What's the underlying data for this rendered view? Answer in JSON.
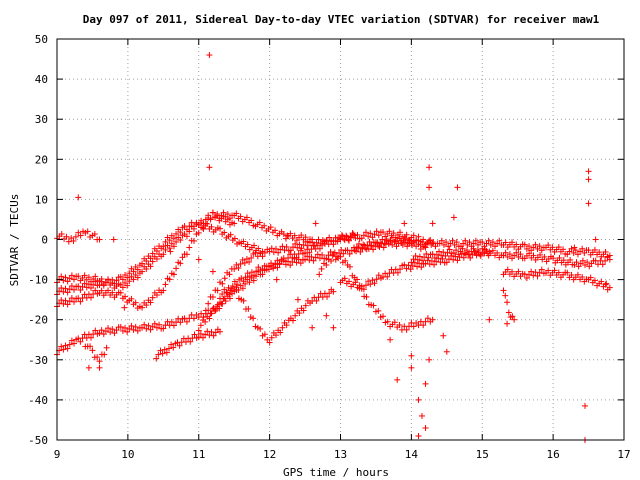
{
  "chart_data": {
    "type": "scatter",
    "title": "Day 097 of 2011, Sidereal Day-to-day VTEC variation (SDTVAR) for receiver maw1",
    "xlabel": "GPS time / hours",
    "ylabel": "SDTVAR / TECUs",
    "xlim": [
      9,
      17
    ],
    "ylim": [
      -50,
      50
    ],
    "xticks": [
      "9",
      "10",
      "11",
      "12",
      "13",
      "14",
      "15",
      "16",
      "17"
    ],
    "yticks": [
      "-50",
      "-40",
      "-30",
      "-20",
      "-10",
      "0",
      "10",
      "20",
      "30",
      "40",
      "50"
    ],
    "grid": true,
    "marker": "+",
    "color": "#ff0000",
    "tracks": [
      {
        "x": [
          9.0,
          9.3,
          9.6,
          9.9,
          10.2,
          10.5,
          10.8,
          11.0,
          11.2,
          11.5,
          11.9,
          12.2,
          12.5,
          12.8,
          13.0,
          13.3,
          13.6,
          13.9,
          14.1,
          14.3
        ],
        "y": [
          -28,
          -25,
          -23,
          -22.5,
          -22,
          -21.5,
          -20,
          -19,
          -18,
          -13,
          -8,
          -5,
          -3,
          -1,
          0,
          1,
          1.5,
          1,
          0,
          -1
        ]
      },
      {
        "x": [
          9.0,
          9.3,
          9.6,
          9.9,
          10.2,
          10.5,
          10.8,
          11.0,
          11.3,
          11.6,
          11.9
        ],
        "y": [
          -13,
          -12,
          -11,
          -10,
          -6,
          -1,
          3,
          4,
          2,
          -1,
          -3
        ]
      },
      {
        "x": [
          9.0,
          9.3,
          9.6,
          9.9,
          10.2,
          10.5,
          10.8,
          11.0,
          11.2,
          11.5
        ],
        "y": [
          -10,
          -9.5,
          -10,
          -12,
          -8,
          -3,
          1,
          4,
          6,
          4
        ]
      },
      {
        "x": [
          9.0,
          9.3,
          9.6,
          9.9,
          10.2,
          10.5,
          10.8,
          11.0,
          11.2,
          11.5,
          11.8,
          12.2,
          12.6
        ],
        "y": [
          -16,
          -15,
          -13,
          -14,
          -17,
          -12,
          -4,
          2,
          6,
          6,
          4,
          1,
          0
        ]
      },
      {
        "x": [
          9.0,
          9.2,
          9.4,
          9.6
        ],
        "y": [
          1,
          0,
          2,
          0
        ]
      },
      {
        "x": [
          9.4,
          9.5,
          9.6,
          9.7
        ],
        "y": [
          -26,
          -28,
          -30,
          -27
        ]
      },
      {
        "x": [
          10.4,
          10.7,
          11.0,
          11.3
        ],
        "y": [
          -29,
          -26,
          -24,
          -23
        ]
      },
      {
        "x": [
          11.0,
          11.3,
          11.5,
          11.7,
          11.9,
          12.0,
          12.3,
          12.6,
          12.9
        ],
        "y": [
          -22,
          -16,
          -12,
          -18,
          -24,
          -25,
          -20,
          -15,
          -13
        ]
      },
      {
        "x": [
          11.1,
          11.3,
          11.5,
          11.8,
          12.0,
          12.3,
          12.6,
          12.9,
          13.2
        ],
        "y": [
          -17,
          -11,
          -7,
          -4,
          -3,
          -2,
          -1,
          0,
          1
        ]
      },
      {
        "x": [
          11.3,
          11.6,
          11.9,
          12.2,
          12.5,
          12.8,
          13.1,
          13.4,
          13.7,
          14.0,
          14.2
        ],
        "y": [
          -14,
          -10,
          -7,
          -6,
          -5,
          -4,
          -3,
          -2,
          -1,
          -1,
          -2
        ]
      },
      {
        "x": [
          12.7,
          12.9,
          13.1,
          13.3,
          13.5,
          13.7,
          13.9,
          14.1,
          14.3
        ],
        "y": [
          -8,
          -4,
          -6,
          -13,
          -18,
          -21,
          -22,
          -21,
          -20
        ]
      },
      {
        "x": [
          13.0,
          13.3,
          13.6,
          13.9,
          14.2,
          14.5,
          14.8,
          15.1
        ],
        "y": [
          -10,
          -12,
          -9,
          -7,
          -6,
          -5,
          -4,
          -3
        ]
      },
      {
        "x": [
          13.2,
          13.5,
          13.8,
          14.1,
          14.4,
          14.7,
          15.0,
          15.3,
          15.6,
          15.9,
          16.2,
          16.5,
          16.8
        ],
        "y": [
          -2,
          -1,
          0,
          -1,
          -1,
          -1,
          -1,
          -1,
          -2,
          -2,
          -3,
          -3,
          -4
        ]
      },
      {
        "x": [
          14.0,
          14.3,
          14.6,
          15.0,
          15.3,
          15.6,
          16.0,
          16.3,
          16.6,
          16.8
        ],
        "y": [
          -5,
          -4,
          -3,
          -3,
          -4,
          -4,
          -5,
          -6,
          -6,
          -5
        ]
      },
      {
        "x": [
          15.3,
          15.6,
          15.9,
          16.2,
          16.5,
          16.8
        ],
        "y": [
          -8,
          -9,
          -8,
          -9,
          -10,
          -12
        ]
      },
      {
        "x": [
          15.3,
          15.35,
          15.4,
          15.45
        ],
        "y": [
          -12,
          -16,
          -19,
          -20
        ]
      }
    ],
    "points": [
      [
        11.15,
        46
      ],
      [
        11.15,
        18
      ],
      [
        9.3,
        10.5
      ],
      [
        14.25,
        18
      ],
      [
        14.25,
        13
      ],
      [
        14.65,
        13
      ],
      [
        14.6,
        5.5
      ],
      [
        16.5,
        17
      ],
      [
        16.5,
        15
      ],
      [
        16.5,
        9
      ],
      [
        16.45,
        -41.5
      ],
      [
        16.45,
        -50
      ],
      [
        14.1,
        -40
      ],
      [
        14.15,
        -44
      ],
      [
        14.2,
        -47
      ],
      [
        14.1,
        -49
      ],
      [
        13.8,
        -35
      ],
      [
        14.2,
        -36
      ],
      [
        14.0,
        -32
      ],
      [
        14.25,
        -30
      ],
      [
        14.0,
        -29
      ],
      [
        13.7,
        -25
      ],
      [
        12.6,
        -22
      ],
      [
        12.9,
        -22
      ],
      [
        11.0,
        -5
      ],
      [
        11.2,
        -8
      ],
      [
        9.95,
        -17
      ],
      [
        9.45,
        -32
      ],
      [
        9.6,
        -32
      ],
      [
        9.8,
        0
      ],
      [
        10.6,
        -3
      ],
      [
        12.1,
        -10
      ],
      [
        12.4,
        -15
      ],
      [
        12.8,
        -19
      ],
      [
        13.9,
        4
      ],
      [
        14.3,
        4
      ],
      [
        15.1,
        -20
      ],
      [
        15.35,
        -21
      ],
      [
        16.3,
        -2
      ],
      [
        16.6,
        0
      ],
      [
        16.75,
        -11
      ],
      [
        14.45,
        -24
      ],
      [
        14.5,
        -28
      ],
      [
        12.25,
        1
      ],
      [
        12.65,
        4
      ]
    ]
  }
}
